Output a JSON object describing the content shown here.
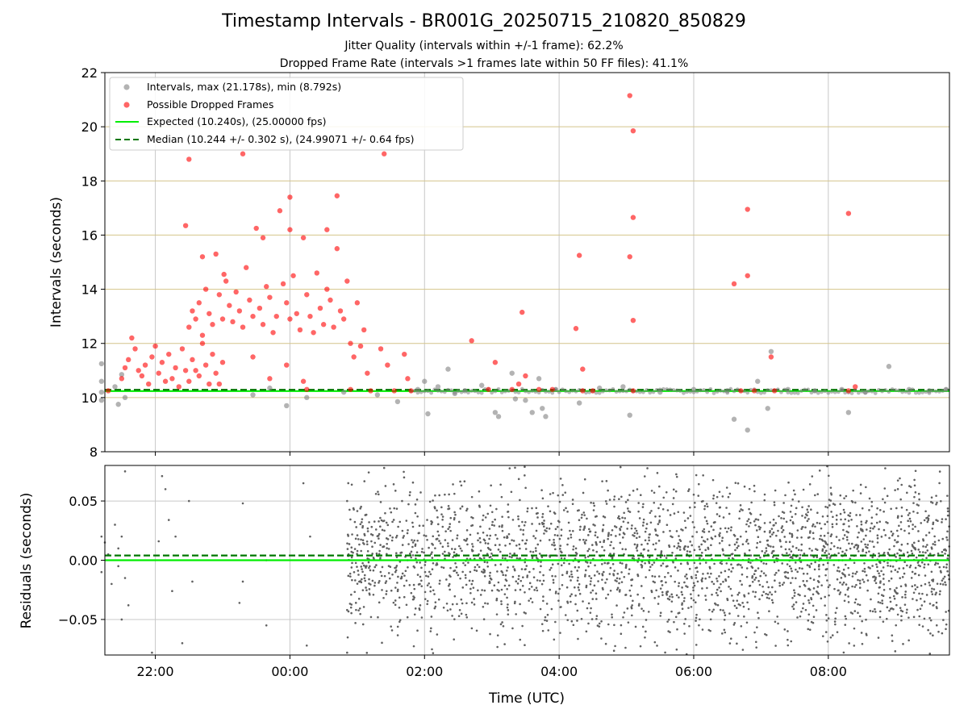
{
  "title": "Timestamp Intervals - BR001G_20250715_210820_850829",
  "subtitle_1": "Jitter Quality (intervals within +/-1 frame): 62.2%",
  "subtitle_2": "Dropped Frame Rate (intervals >1 frames late within 50 FF files): 41.1%",
  "colors": {
    "intervals": "#808080",
    "dropped": "#ff0000",
    "expected": "#00ee00",
    "median": "#007700",
    "hgrid_top": "#d4c48a",
    "grid": "#c8c8c8",
    "residuals": "#606060"
  },
  "chart_data": [
    {
      "type": "scatter",
      "xlabel": "",
      "ylabel": "Intervals (seconds)",
      "x_unit": "hours since 00:00 UTC",
      "xlim": [
        -2.75,
        9.8
      ],
      "ylim": [
        8,
        22
      ],
      "yticks": [
        "8",
        "10",
        "12",
        "14",
        "16",
        "18",
        "20",
        "22"
      ],
      "grid": "on",
      "legend_position": "upper-left",
      "legend": [
        "Intervals, max (21.178s), min (8.792s)",
        "Possible Dropped Frames",
        "Expected (10.240s), (25.00000 fps)",
        "Median (10.244 +/- 0.302 s), (24.99071 +/- 0.64 fps)"
      ],
      "expected_value": 10.24,
      "median_value": 10.244,
      "series": [
        {
          "name": "Intervals, max (21.178s), min (8.792s)",
          "points": [
            [
              -2.8,
              10.2
            ],
            [
              -2.8,
              10.6
            ],
            [
              -2.8,
              11.25
            ],
            [
              -2.8,
              9.9
            ],
            [
              -2.6,
              10.4
            ],
            [
              -2.55,
              9.75
            ],
            [
              -2.5,
              10.85
            ],
            [
              -2.45,
              10.0
            ],
            [
              -0.55,
              10.1
            ],
            [
              -0.3,
              10.35
            ],
            [
              -0.05,
              9.7
            ],
            [
              0.25,
              10.0
            ],
            [
              0.8,
              10.2
            ],
            [
              1.3,
              10.1
            ],
            [
              1.6,
              9.85
            ],
            [
              1.9,
              10.3
            ],
            [
              2.0,
              10.6
            ],
            [
              2.05,
              9.4
            ],
            [
              2.2,
              10.4
            ],
            [
              2.35,
              11.05
            ],
            [
              2.45,
              10.15
            ],
            [
              2.6,
              10.25
            ],
            [
              2.85,
              10.45
            ],
            [
              3.05,
              9.45
            ],
            [
              3.1,
              9.3
            ],
            [
              3.3,
              10.9
            ],
            [
              3.35,
              9.95
            ],
            [
              3.5,
              9.9
            ],
            [
              3.6,
              9.45
            ],
            [
              3.7,
              10.7
            ],
            [
              3.75,
              9.6
            ],
            [
              3.8,
              9.3
            ],
            [
              3.95,
              10.3
            ],
            [
              4.3,
              9.8
            ],
            [
              4.6,
              10.35
            ],
            [
              4.95,
              10.4
            ],
            [
              5.05,
              9.35
            ],
            [
              5.5,
              10.2
            ],
            [
              6.0,
              10.3
            ],
            [
              6.5,
              10.25
            ],
            [
              6.6,
              9.2
            ],
            [
              6.8,
              8.8
            ],
            [
              6.95,
              10.6
            ],
            [
              7.1,
              9.6
            ],
            [
              7.15,
              11.7
            ],
            [
              7.4,
              10.3
            ],
            [
              7.8,
              10.25
            ],
            [
              8.2,
              10.3
            ],
            [
              8.3,
              9.45
            ],
            [
              8.55,
              10.2
            ],
            [
              8.9,
              11.15
            ],
            [
              9.2,
              10.3
            ],
            [
              9.5,
              10.25
            ],
            [
              9.75,
              10.3
            ]
          ]
        },
        {
          "name": "Possible Dropped Frames",
          "points": [
            [
              -2.7,
              10.25
            ],
            [
              -2.5,
              10.7
            ],
            [
              -2.45,
              11.1
            ],
            [
              -2.4,
              11.4
            ],
            [
              -2.35,
              12.2
            ],
            [
              -2.3,
              11.8
            ],
            [
              -2.25,
              11.0
            ],
            [
              -2.2,
              10.8
            ],
            [
              -2.15,
              11.2
            ],
            [
              -2.1,
              10.5
            ],
            [
              -2.05,
              11.5
            ],
            [
              -2.0,
              11.9
            ],
            [
              -1.95,
              10.9
            ],
            [
              -1.9,
              11.3
            ],
            [
              -1.85,
              10.6
            ],
            [
              -1.8,
              11.6
            ],
            [
              -1.75,
              10.7
            ],
            [
              -1.7,
              11.1
            ],
            [
              -1.65,
              10.4
            ],
            [
              -1.6,
              11.8
            ],
            [
              -1.55,
              11.0
            ],
            [
              -1.5,
              10.6
            ],
            [
              -1.45,
              11.4
            ],
            [
              -1.4,
              11.0
            ],
            [
              -1.35,
              10.8
            ],
            [
              -1.3,
              12.0
            ],
            [
              -1.25,
              11.2
            ],
            [
              -1.2,
              10.5
            ],
            [
              -1.15,
              11.6
            ],
            [
              -1.1,
              10.9
            ],
            [
              -1.05,
              10.5
            ],
            [
              -1.0,
              11.3
            ],
            [
              -0.98,
              14.55
            ],
            [
              -0.7,
              19.0
            ],
            [
              -1.5,
              18.8
            ],
            [
              -1.55,
              16.35
            ],
            [
              -1.5,
              12.6
            ],
            [
              -1.45,
              13.2
            ],
            [
              -1.4,
              12.9
            ],
            [
              -1.35,
              13.5
            ],
            [
              -1.3,
              12.3
            ],
            [
              -1.25,
              14.0
            ],
            [
              -1.2,
              13.1
            ],
            [
              -1.15,
              12.7
            ],
            [
              -1.1,
              15.3
            ],
            [
              -1.05,
              13.8
            ],
            [
              -1.0,
              12.9
            ],
            [
              -0.95,
              14.3
            ],
            [
              -0.9,
              13.4
            ],
            [
              -0.85,
              12.8
            ],
            [
              -0.8,
              13.9
            ],
            [
              -0.75,
              13.2
            ],
            [
              -0.7,
              12.6
            ],
            [
              -0.65,
              14.8
            ],
            [
              -0.6,
              13.6
            ],
            [
              -0.55,
              13.0
            ],
            [
              -0.5,
              16.25
            ],
            [
              -0.45,
              13.3
            ],
            [
              -0.4,
              12.7
            ],
            [
              -0.35,
              14.1
            ],
            [
              -0.3,
              13.7
            ],
            [
              -0.25,
              12.4
            ],
            [
              -0.2,
              13.0
            ],
            [
              -0.15,
              16.9
            ],
            [
              -0.1,
              14.2
            ],
            [
              -0.05,
              13.5
            ],
            [
              0.0,
              12.9
            ],
            [
              0.05,
              14.5
            ],
            [
              0.1,
              13.1
            ],
            [
              0.15,
              12.5
            ],
            [
              0.2,
              15.9
            ],
            [
              0.25,
              13.8
            ],
            [
              0.3,
              13.0
            ],
            [
              0.35,
              12.4
            ],
            [
              0.4,
              14.6
            ],
            [
              0.45,
              13.3
            ],
            [
              0.5,
              12.7
            ],
            [
              0.55,
              14.0
            ],
            [
              0.6,
              13.6
            ],
            [
              0.65,
              12.6
            ],
            [
              0.7,
              15.5
            ],
            [
              0.75,
              13.2
            ],
            [
              0.8,
              12.9
            ],
            [
              0.85,
              14.3
            ],
            [
              -1.3,
              15.2
            ],
            [
              -0.4,
              15.9
            ],
            [
              0.0,
              17.4
            ],
            [
              0.0,
              16.2
            ],
            [
              0.55,
              16.2
            ],
            [
              0.7,
              17.45
            ],
            [
              1.0,
              13.5
            ],
            [
              0.9,
              12.0
            ],
            [
              -0.55,
              11.5
            ],
            [
              -0.3,
              10.7
            ],
            [
              -0.05,
              11.2
            ],
            [
              0.2,
              10.6
            ],
            [
              0.25,
              10.3
            ],
            [
              0.9,
              10.3
            ],
            [
              0.95,
              11.5
            ],
            [
              1.05,
              11.9
            ],
            [
              1.1,
              12.5
            ],
            [
              1.15,
              10.9
            ],
            [
              1.2,
              10.25
            ],
            [
              1.35,
              11.8
            ],
            [
              1.4,
              19.0
            ],
            [
              1.45,
              11.2
            ],
            [
              1.55,
              10.25
            ],
            [
              1.7,
              11.6
            ],
            [
              1.75,
              10.7
            ],
            [
              1.8,
              10.25
            ],
            [
              2.7,
              12.1
            ],
            [
              2.95,
              10.3
            ],
            [
              3.05,
              11.3
            ],
            [
              3.3,
              10.3
            ],
            [
              3.4,
              10.5
            ],
            [
              3.45,
              13.15
            ],
            [
              3.5,
              10.8
            ],
            [
              3.7,
              10.3
            ],
            [
              3.9,
              10.3
            ],
            [
              4.25,
              12.55
            ],
            [
              4.3,
              15.25
            ],
            [
              4.35,
              11.05
            ],
            [
              4.35,
              10.25
            ],
            [
              4.5,
              10.25
            ],
            [
              5.05,
              21.15
            ],
            [
              5.1,
              19.85
            ],
            [
              5.1,
              16.65
            ],
            [
              5.05,
              15.2
            ],
            [
              5.1,
              12.85
            ],
            [
              5.1,
              10.25
            ],
            [
              6.6,
              14.2
            ],
            [
              6.8,
              14.5
            ],
            [
              6.8,
              16.95
            ],
            [
              6.7,
              10.25
            ],
            [
              6.9,
              10.25
            ],
            [
              7.15,
              11.5
            ],
            [
              7.2,
              10.25
            ],
            [
              8.3,
              16.8
            ],
            [
              8.3,
              10.25
            ],
            [
              8.4,
              10.4
            ]
          ]
        }
      ]
    },
    {
      "type": "scatter",
      "xlabel": "Time (UTC)",
      "ylabel": "Residuals (seconds)",
      "x_unit": "hours since 00:00 UTC",
      "xlim": [
        -2.75,
        9.8
      ],
      "ylim": [
        -0.08,
        0.08
      ],
      "xticks": [
        "22:00",
        "00:00",
        "02:00",
        "04:00",
        "06:00",
        "08:00"
      ],
      "yticks": [
        "0.05",
        "0.00",
        "−0.05"
      ],
      "grid": "on",
      "expected_value": 0.0,
      "median_value": 0.004,
      "series": [
        {
          "name": "",
          "points": [
            [
              -2.8,
              0.02
            ],
            [
              -2.8,
              -0.01
            ],
            [
              -2.75,
              0.015
            ],
            [
              -2.7,
              0.005
            ],
            [
              -2.65,
              -0.02
            ],
            [
              -2.6,
              0.03
            ],
            [
              -2.55,
              -0.005
            ],
            [
              -2.5,
              0.02
            ],
            [
              -2.45,
              -0.015
            ],
            [
              -2.45,
              0.075
            ],
            [
              -2.5,
              -0.05
            ],
            [
              -2.4,
              -0.038
            ],
            [
              -2.55,
              0.01
            ],
            [
              -2.05,
              -0.078
            ],
            [
              -1.95,
              0.016
            ],
            [
              -1.9,
              0.071
            ],
            [
              -1.85,
              0.06
            ],
            [
              -1.8,
              0.034
            ],
            [
              -1.75,
              -0.026
            ],
            [
              -1.7,
              0.02
            ],
            [
              -1.6,
              -0.07
            ],
            [
              -1.5,
              0.05
            ],
            [
              -1.45,
              -0.018
            ],
            [
              -0.7,
              0.048
            ],
            [
              -0.7,
              -0.018
            ],
            [
              -0.75,
              -0.036
            ],
            [
              -0.35,
              -0.055
            ],
            [
              -0.35,
              0.0
            ],
            [
              0.2,
              0.065
            ],
            [
              0.25,
              -0.072
            ],
            [
              0.3,
              0.02
            ],
            [
              0.85,
              -0.042
            ],
            [
              0.85,
              0.05
            ],
            [
              0.85,
              -0.078
            ]
          ]
        }
      ]
    }
  ]
}
